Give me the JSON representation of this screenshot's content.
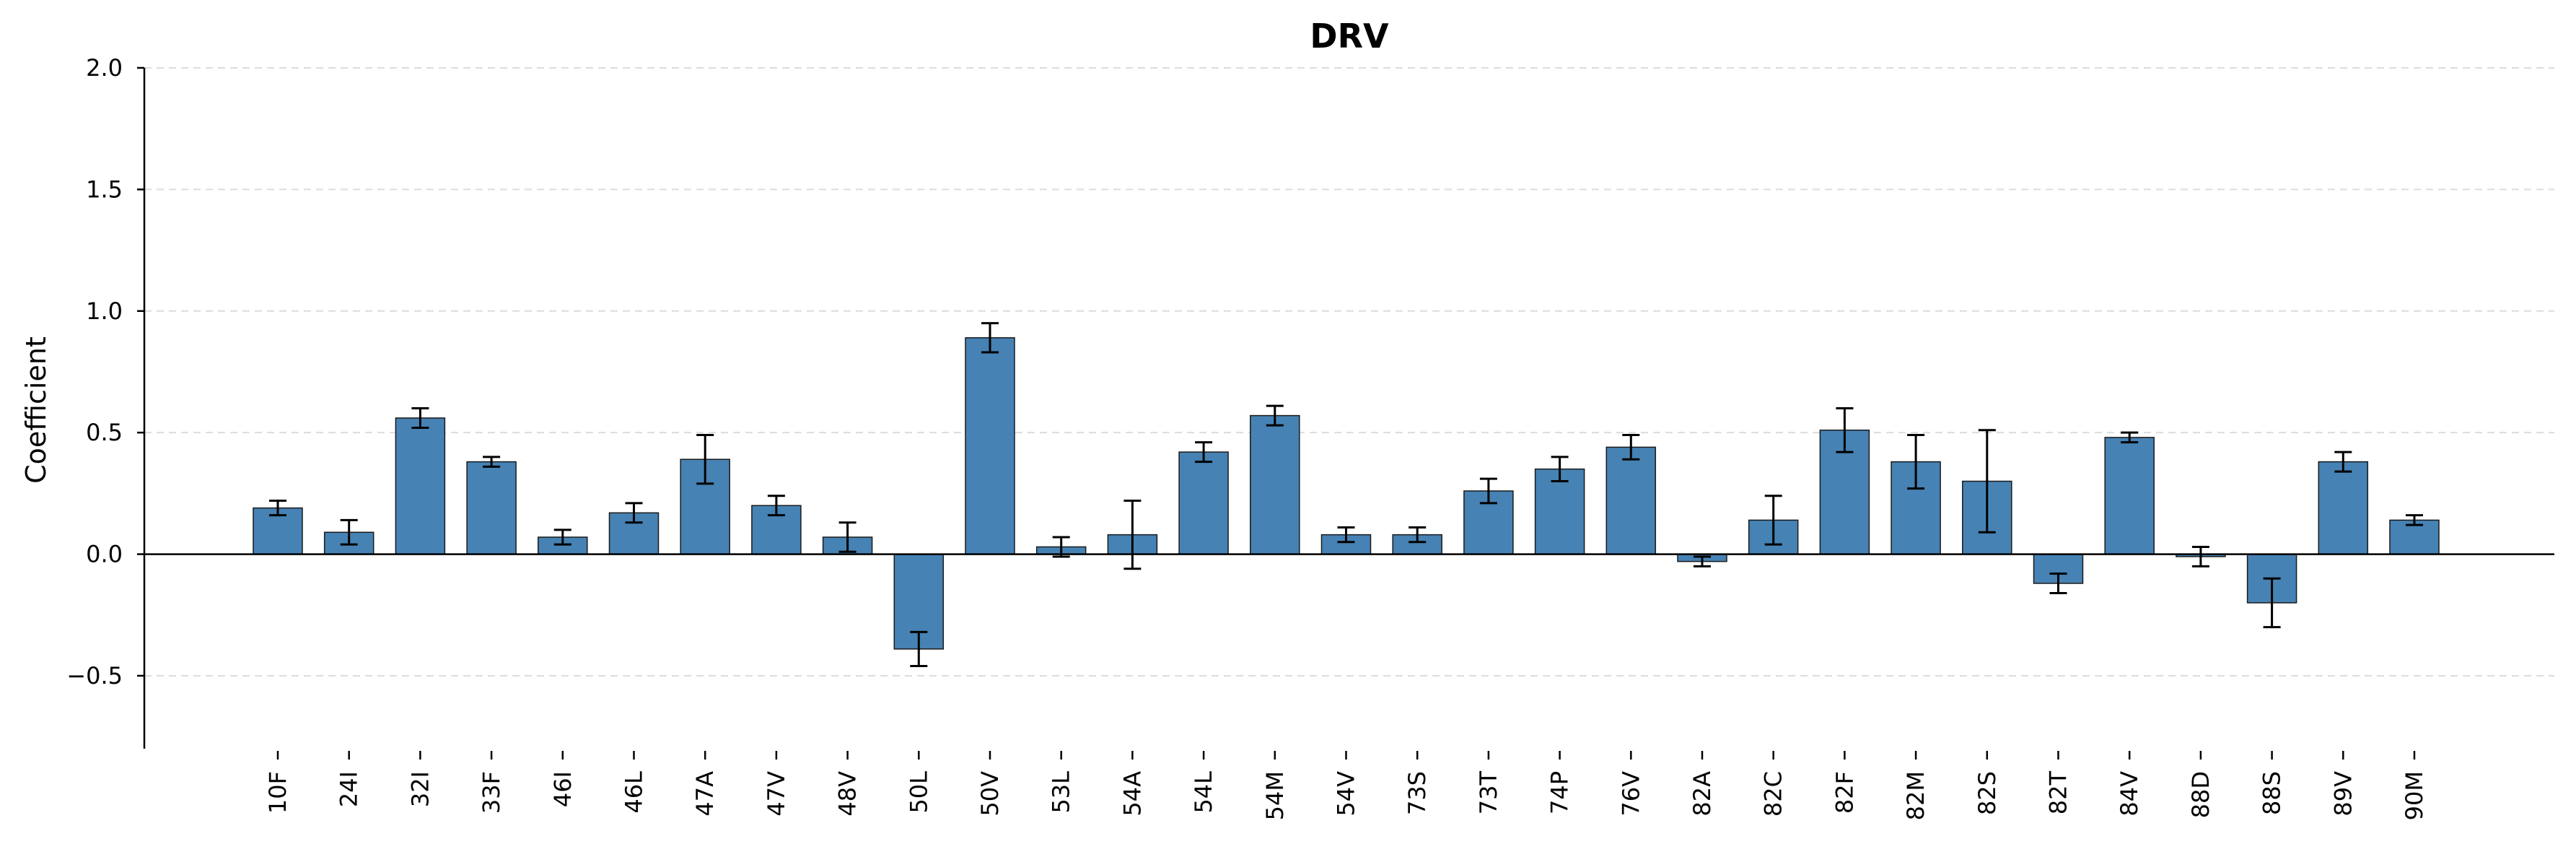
{
  "chart_data": {
    "type": "bar",
    "title": "DRV",
    "xlabel": "",
    "ylabel": "Coefficient",
    "ylim": [
      -0.8,
      2.0
    ],
    "yticks": [
      -0.5,
      0.0,
      0.5,
      1.0,
      1.5,
      2.0
    ],
    "ytick_labels": [
      "−0.5",
      "0.0",
      "0.5",
      "1.0",
      "1.5",
      "2.0"
    ],
    "grid": "horizontal dashed",
    "bar_color": "#4682b4",
    "categories": [
      "10F",
      "24I",
      "32I",
      "33F",
      "46I",
      "46L",
      "47A",
      "47V",
      "48V",
      "50L",
      "50V",
      "53L",
      "54A",
      "54L",
      "54M",
      "54V",
      "73S",
      "73T",
      "74P",
      "76V",
      "82A",
      "82C",
      "82F",
      "82M",
      "82S",
      "82T",
      "84V",
      "88D",
      "88S",
      "89V",
      "90M"
    ],
    "values": [
      0.19,
      0.09,
      0.56,
      0.38,
      0.07,
      0.17,
      0.39,
      0.2,
      0.07,
      -0.39,
      0.89,
      0.03,
      0.08,
      0.42,
      0.57,
      0.08,
      0.08,
      0.26,
      0.35,
      0.44,
      -0.03,
      0.14,
      0.51,
      0.38,
      0.3,
      -0.12,
      0.48,
      -0.01,
      -0.2,
      0.38,
      0.14
    ],
    "errors": [
      0.03,
      0.05,
      0.04,
      0.02,
      0.03,
      0.04,
      0.1,
      0.04,
      0.06,
      0.07,
      0.06,
      0.04,
      0.14,
      0.04,
      0.04,
      0.03,
      0.03,
      0.05,
      0.05,
      0.05,
      0.02,
      0.1,
      0.09,
      0.11,
      0.21,
      0.04,
      0.02,
      0.04,
      0.1,
      0.04,
      0.02
    ]
  }
}
